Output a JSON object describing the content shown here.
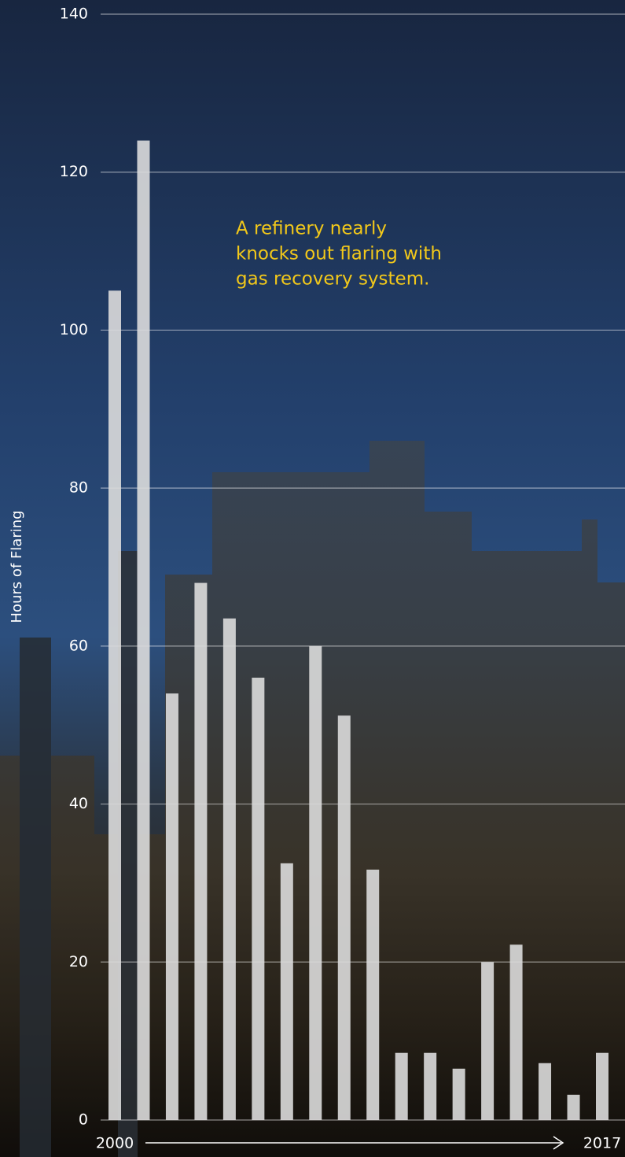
{
  "chart_data": {
    "type": "bar",
    "y_label": "Hours of Flaring",
    "annotation": [
      "A refinery nearly",
      "knocks out flaring with",
      "gas recovery system."
    ],
    "categories": [
      "2000",
      null,
      null,
      null,
      null,
      null,
      null,
      null,
      null,
      null,
      null,
      null,
      null,
      null,
      null,
      null,
      null,
      "2017"
    ],
    "values": [
      105,
      124,
      54,
      68,
      63.5,
      56,
      32.5,
      60,
      51.2,
      31.7,
      8.5,
      8.5,
      6.5,
      20,
      22.2,
      7.2,
      3.2,
      8.5
    ],
    "color": "#dcdcdc",
    "ylim": [
      0,
      140
    ],
    "yticks": [
      0,
      20,
      40,
      60,
      80,
      100,
      120,
      140
    ],
    "grid": true
  }
}
